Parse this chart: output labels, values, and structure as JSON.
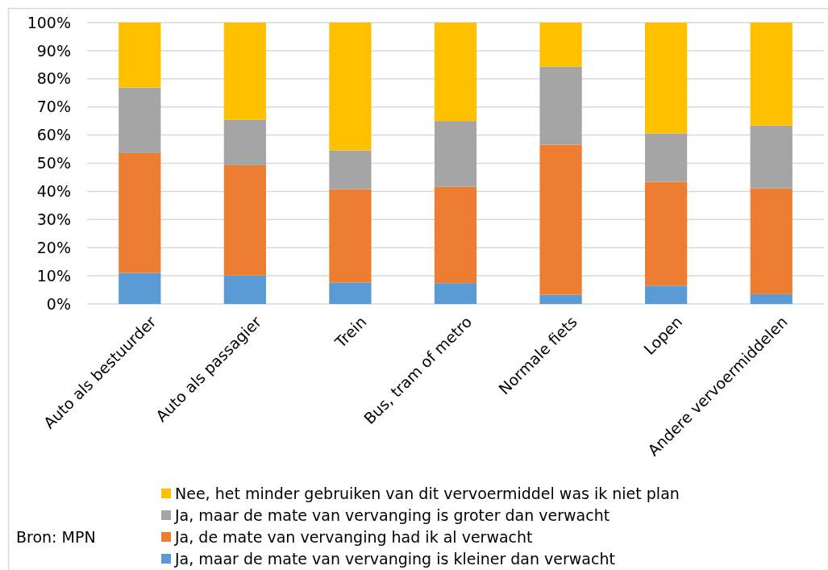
{
  "chart_data": {
    "type": "bar",
    "stacked": true,
    "categories": [
      "Auto als bestuurder",
      "Auto als passagier",
      "Trein",
      "Bus, tram of metro",
      "Normale fiets",
      "Lopen",
      "Andere vervoermiddelen"
    ],
    "series": [
      {
        "name": "Ja, maar de mate van vervanging is kleiner dan verwacht",
        "color": "#5b9bd5",
        "values": [
          11.0,
          10.1,
          7.6,
          7.4,
          3.3,
          6.5,
          3.5
        ]
      },
      {
        "name": "Ja, de mate van vervanging had ik al verwacht",
        "color": "#ed7d31",
        "values": [
          42.6,
          39.2,
          33.2,
          34.3,
          53.3,
          36.9,
          37.6
        ]
      },
      {
        "name": "Ja, maar de mate van vervanging is groter dan verwacht",
        "color": "#a5a5a5",
        "values": [
          23.3,
          16.2,
          13.8,
          23.3,
          27.7,
          17.2,
          22.3
        ]
      },
      {
        "name": "Nee, het minder gebruiken van dit vervoermiddel was ik niet plan",
        "color": "#ffc000",
        "values": [
          23.1,
          34.5,
          45.4,
          35.0,
          15.7,
          39.4,
          36.6
        ]
      }
    ],
    "ylim": [
      0,
      100
    ],
    "yticks": [
      {
        "value": 0,
        "label": "0%"
      },
      {
        "value": 10,
        "label": "10%"
      },
      {
        "value": 20,
        "label": "20%"
      },
      {
        "value": 30,
        "label": "30%"
      },
      {
        "value": 40,
        "label": "40%"
      },
      {
        "value": 50,
        "label": "50%"
      },
      {
        "value": 60,
        "label": "60%"
      },
      {
        "value": 70,
        "label": "70%"
      },
      {
        "value": 80,
        "label": "80%"
      },
      {
        "value": 90,
        "label": "90%"
      },
      {
        "value": 100,
        "label": "100%"
      }
    ],
    "grid": "y",
    "legend": "bottom",
    "annotations": [
      "Bron: MPN"
    ]
  }
}
